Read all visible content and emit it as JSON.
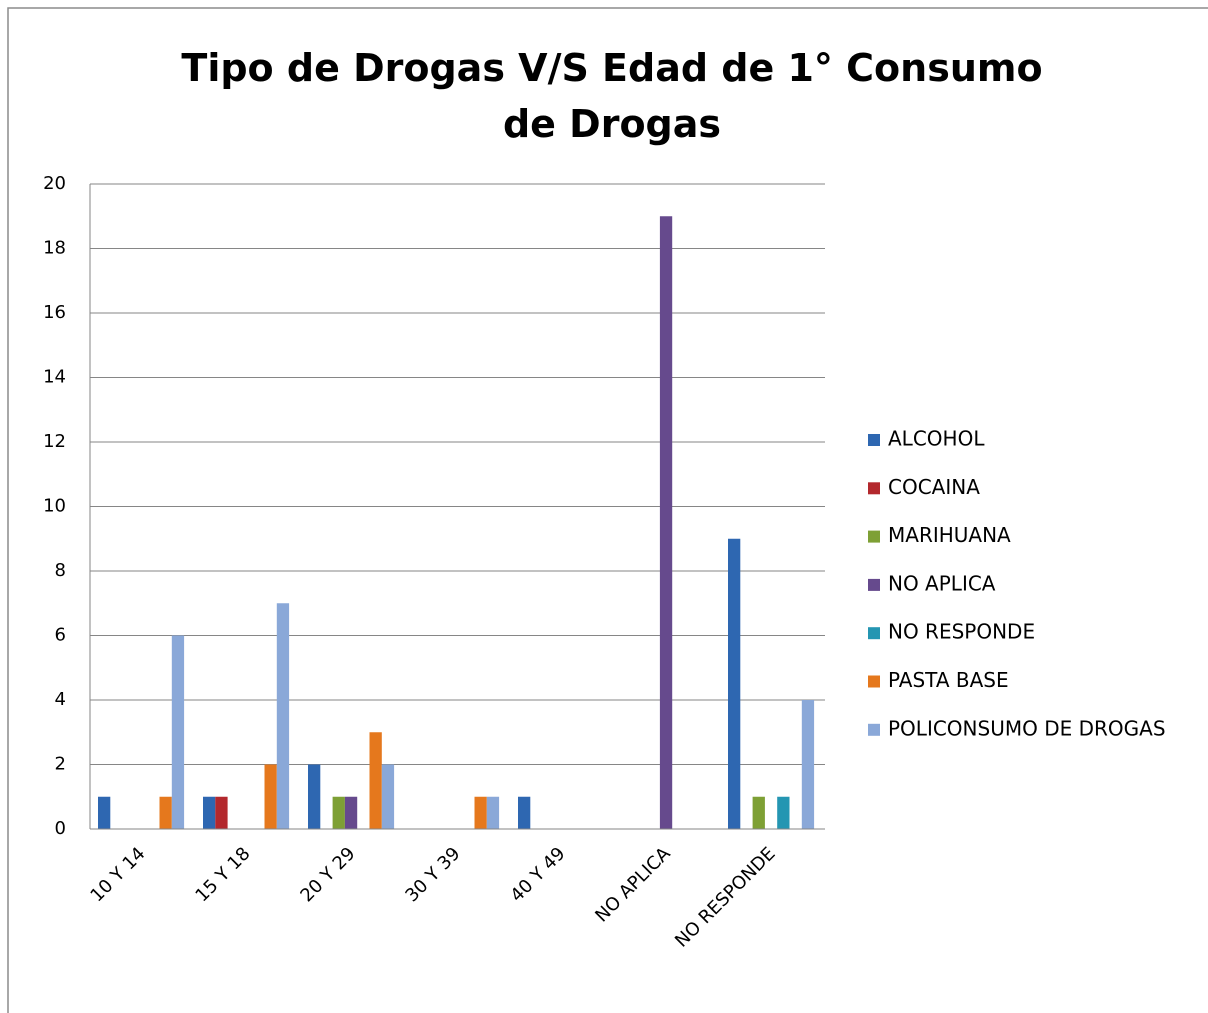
{
  "chart_data": {
    "type": "bar",
    "title": "Tipo de Drogas V/S Edad de 1° Consumo de Drogas",
    "categories": [
      "10 Y 14",
      "15 Y 18",
      "20 Y 29",
      "30 Y 39",
      "40 Y 49",
      "NO APLICA",
      "NO RESPONDE"
    ],
    "series": [
      {
        "name": "ALCOHOL",
        "color": "#2e67b1",
        "values": [
          1,
          1,
          2,
          0,
          1,
          0,
          9
        ]
      },
      {
        "name": "COCAINA",
        "color": "#b3282d",
        "values": [
          0,
          1,
          0,
          0,
          0,
          0,
          0
        ]
      },
      {
        "name": "MARIHUANA",
        "color": "#7ea035",
        "values": [
          0,
          0,
          1,
          0,
          0,
          0,
          1
        ]
      },
      {
        "name": "NO APLICA",
        "color": "#664a8d",
        "values": [
          0,
          0,
          1,
          0,
          0,
          19,
          0
        ]
      },
      {
        "name": "NO RESPONDE",
        "color": "#2496b2",
        "values": [
          0,
          0,
          0,
          0,
          0,
          0,
          1
        ]
      },
      {
        "name": "PASTA BASE",
        "color": "#e5781d",
        "values": [
          1,
          2,
          3,
          1,
          0,
          0,
          0
        ]
      },
      {
        "name": "POLICONSUMO DE DROGAS",
        "color": "#8aa8d8",
        "values": [
          6,
          7,
          2,
          1,
          0,
          0,
          4
        ]
      }
    ],
    "ylim": [
      0,
      20
    ],
    "yticks": [
      0,
      2,
      4,
      6,
      8,
      10,
      12,
      14,
      16,
      18,
      20
    ],
    "grid": true,
    "legend": "right"
  }
}
